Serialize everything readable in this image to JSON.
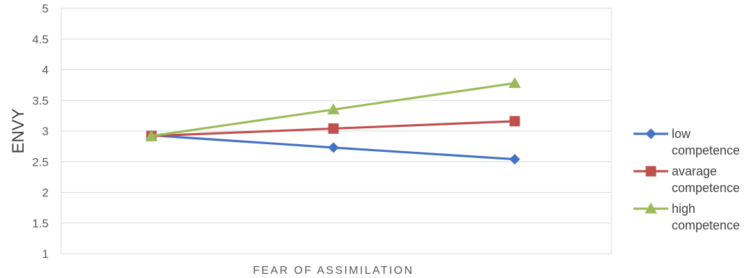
{
  "chart_data": {
    "type": "line",
    "title": "",
    "xlabel": "FEAR OF ASSIMILATION",
    "ylabel": "ENVY",
    "ylim": [
      1,
      5
    ],
    "yticks": [
      "1",
      "1.5",
      "2",
      "2.5",
      "3",
      "3.5",
      "4",
      "4.5",
      "5"
    ],
    "grid": true,
    "legend_position": "right",
    "categories": [
      "",
      "",
      ""
    ],
    "series": [
      {
        "name_lines": [
          "low",
          "competence"
        ],
        "color": "#4472C4",
        "marker": "diamond",
        "values": [
          2.93,
          2.73,
          2.54
        ]
      },
      {
        "name_lines": [
          "avarage",
          "competence"
        ],
        "color": "#C0504D",
        "marker": "square",
        "values": [
          2.92,
          3.04,
          3.16
        ]
      },
      {
        "name_lines": [
          "high",
          "competence"
        ],
        "color": "#9BBB59",
        "marker": "triangle",
        "values": [
          2.92,
          3.35,
          3.78
        ]
      }
    ]
  }
}
